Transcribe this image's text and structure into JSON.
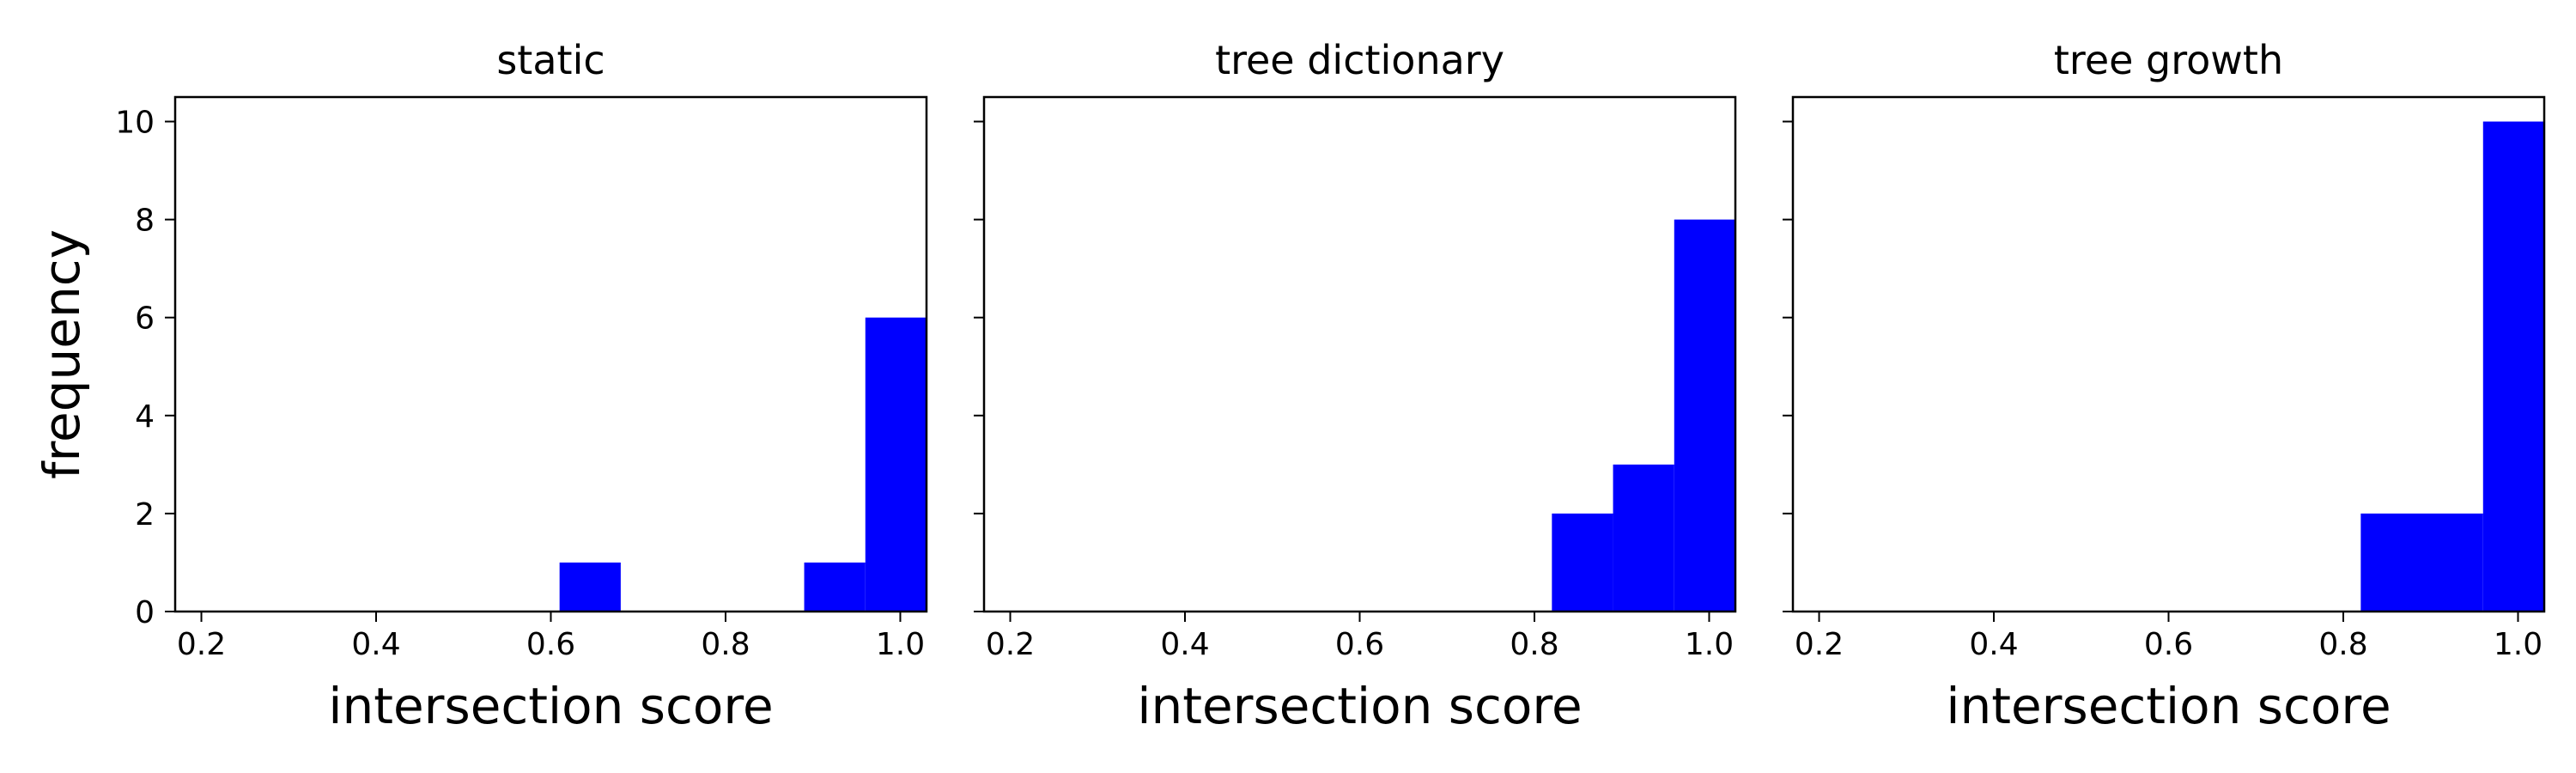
{
  "chart_data": [
    {
      "type": "bar",
      "title": "static",
      "xlabel": "intersection score",
      "ylabel": "frequency",
      "xlim": [
        0.17,
        1.03
      ],
      "ylim": [
        0,
        10.5
      ],
      "xticks": [
        "0.2",
        "0.4",
        "0.6",
        "0.8",
        "1.0"
      ],
      "yticks": [
        "0",
        "2",
        "4",
        "6",
        "8",
        "10"
      ],
      "bar_color": "#0000ff",
      "bins": [
        {
          "x0": 0.61,
          "x1": 0.68,
          "value": 1
        },
        {
          "x0": 0.89,
          "x1": 0.96,
          "value": 1
        },
        {
          "x0": 0.96,
          "x1": 1.03,
          "value": 6
        }
      ]
    },
    {
      "type": "bar",
      "title": "tree dictionary",
      "xlabel": "intersection score",
      "ylabel": "",
      "xlim": [
        0.17,
        1.03
      ],
      "ylim": [
        0,
        10.5
      ],
      "xticks": [
        "0.2",
        "0.4",
        "0.6",
        "0.8",
        "1.0"
      ],
      "yticks": [],
      "bar_color": "#0000ff",
      "bins": [
        {
          "x0": 0.82,
          "x1": 0.89,
          "value": 2
        },
        {
          "x0": 0.89,
          "x1": 0.96,
          "value": 3
        },
        {
          "x0": 0.96,
          "x1": 1.03,
          "value": 8
        }
      ]
    },
    {
      "type": "bar",
      "title": "tree growth",
      "xlabel": "intersection score",
      "ylabel": "",
      "xlim": [
        0.17,
        1.03
      ],
      "ylim": [
        0,
        10.5
      ],
      "xticks": [
        "0.2",
        "0.4",
        "0.6",
        "0.8",
        "1.0"
      ],
      "yticks": [],
      "bar_color": "#0000ff",
      "bins": [
        {
          "x0": 0.82,
          "x1": 0.96,
          "value": 2
        },
        {
          "x0": 0.96,
          "x1": 1.03,
          "value": 10
        }
      ]
    }
  ]
}
